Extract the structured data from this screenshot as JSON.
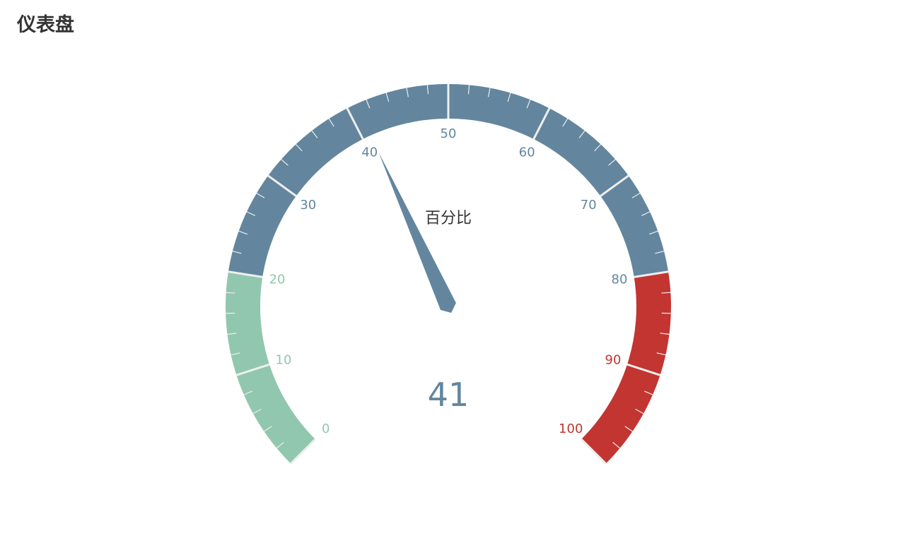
{
  "page": {
    "title": "仪表盘"
  },
  "chart_data": {
    "type": "gauge",
    "title": "",
    "series": [
      {
        "name": "百分比",
        "value": 41
      }
    ],
    "min": 0,
    "max": 100,
    "split_number": 10,
    "tick_labels": [
      "0",
      "10",
      "20",
      "30",
      "40",
      "50",
      "60",
      "70",
      "80",
      "90",
      "100"
    ],
    "start_angle_deg": 225,
    "end_angle_deg": -45,
    "color_bands": [
      {
        "until": 0.2,
        "color": "#91c7ae"
      },
      {
        "until": 0.8,
        "color": "#63869e"
      },
      {
        "until": 1.0,
        "color": "#c23531"
      }
    ],
    "needle_color": "#63869e",
    "value_color": "#63869e",
    "title_color": "#333333"
  }
}
